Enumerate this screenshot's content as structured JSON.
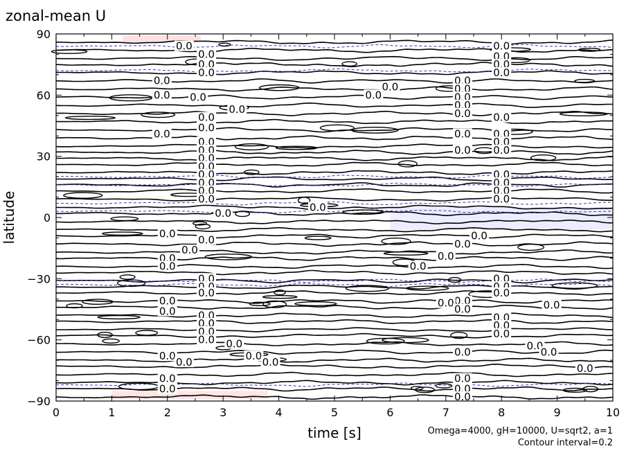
{
  "chart_data": {
    "type": "contour",
    "title": "zonal-mean U",
    "xlabel": "time [s]",
    "ylabel": "latitude",
    "xlim": [
      0,
      10
    ],
    "ylim": [
      -90,
      90
    ],
    "x_ticks": [
      0,
      1,
      2,
      3,
      4,
      5,
      6,
      7,
      8,
      9,
      10
    ],
    "y_ticks": [
      90,
      60,
      30,
      0,
      -30,
      -60,
      -90
    ],
    "grid": false,
    "legend": "none",
    "annotations": [
      "Omega=4000, gH=10000, U=sqrt2, a=1",
      "Contour interval=0.2"
    ],
    "contour_interval": 0.2,
    "contour_label_text": "0.0",
    "colors": {
      "contour": "#000000",
      "negative_contour": "#3333cc",
      "positive_shade": "#ffcccc",
      "negative_shade": "#ccccff"
    },
    "contour_latitudes": [
      86,
      82,
      78,
      75,
      71,
      67,
      63,
      59,
      55,
      51,
      47,
      43,
      39,
      35,
      32,
      29,
      26,
      22,
      19,
      16,
      13,
      9,
      5,
      2,
      -2,
      -6,
      -9,
      -13,
      -17,
      -20,
      -24,
      -27,
      -31,
      -34,
      -37,
      -41,
      -44,
      -48,
      -51,
      -55,
      -58,
      -62,
      -66,
      -70,
      -73,
      -77,
      -81,
      -84,
      -88
    ],
    "negative_contour_latitudes": [
      84,
      72,
      20,
      16,
      7,
      3,
      -31,
      -33,
      -82
    ],
    "labels": [
      {
        "x": 2.3,
        "y": 84
      },
      {
        "x": 2.7,
        "y": 80
      },
      {
        "x": 2.7,
        "y": 75
      },
      {
        "x": 2.7,
        "y": 71
      },
      {
        "x": 1.9,
        "y": 67
      },
      {
        "x": 1.9,
        "y": 60
      },
      {
        "x": 2.55,
        "y": 59
      },
      {
        "x": 3.25,
        "y": 53
      },
      {
        "x": 2.7,
        "y": 49
      },
      {
        "x": 2.7,
        "y": 44
      },
      {
        "x": 1.9,
        "y": 41
      },
      {
        "x": 2.7,
        "y": 37
      },
      {
        "x": 2.7,
        "y": 33
      },
      {
        "x": 2.7,
        "y": 29
      },
      {
        "x": 2.7,
        "y": 25
      },
      {
        "x": 2.7,
        "y": 21
      },
      {
        "x": 2.7,
        "y": 17
      },
      {
        "x": 2.7,
        "y": 13
      },
      {
        "x": 2.7,
        "y": 9
      },
      {
        "x": 3.0,
        "y": 2
      },
      {
        "x": 4.7,
        "y": 5
      },
      {
        "x": 6.0,
        "y": 64
      },
      {
        "x": 5.7,
        "y": 60
      },
      {
        "x": 7.3,
        "y": 67
      },
      {
        "x": 7.3,
        "y": 63
      },
      {
        "x": 7.3,
        "y": 59
      },
      {
        "x": 7.3,
        "y": 55
      },
      {
        "x": 7.3,
        "y": 51
      },
      {
        "x": 7.3,
        "y": 41
      },
      {
        "x": 7.3,
        "y": 33
      },
      {
        "x": 8.0,
        "y": 84
      },
      {
        "x": 8.0,
        "y": 79
      },
      {
        "x": 8.0,
        "y": 75
      },
      {
        "x": 8.0,
        "y": 71
      },
      {
        "x": 8.0,
        "y": 49
      },
      {
        "x": 8.0,
        "y": 41
      },
      {
        "x": 8.0,
        "y": 37
      },
      {
        "x": 8.0,
        "y": 33
      },
      {
        "x": 8.0,
        "y": 21
      },
      {
        "x": 8.0,
        "y": 17
      },
      {
        "x": 8.0,
        "y": 13
      },
      {
        "x": 8.0,
        "y": 9
      },
      {
        "x": 2.0,
        "y": -8
      },
      {
        "x": 2.4,
        "y": -16
      },
      {
        "x": 2.7,
        "y": -11
      },
      {
        "x": 2.0,
        "y": -20
      },
      {
        "x": 2.0,
        "y": -24
      },
      {
        "x": 2.7,
        "y": -30
      },
      {
        "x": 2.7,
        "y": -34
      },
      {
        "x": 2.7,
        "y": -37
      },
      {
        "x": 2.0,
        "y": -41
      },
      {
        "x": 2.0,
        "y": -46
      },
      {
        "x": 2.7,
        "y": -48
      },
      {
        "x": 2.7,
        "y": -52
      },
      {
        "x": 2.7,
        "y": -56
      },
      {
        "x": 2.7,
        "y": -60
      },
      {
        "x": 3.2,
        "y": -62
      },
      {
        "x": 2.0,
        "y": -68
      },
      {
        "x": 2.3,
        "y": -71
      },
      {
        "x": 3.55,
        "y": -68
      },
      {
        "x": 3.85,
        "y": -71
      },
      {
        "x": 2.0,
        "y": -79
      },
      {
        "x": 2.0,
        "y": -84
      },
      {
        "x": 7.6,
        "y": -9
      },
      {
        "x": 7.3,
        "y": -13
      },
      {
        "x": 7.0,
        "y": -19
      },
      {
        "x": 6.5,
        "y": -24
      },
      {
        "x": 7.3,
        "y": -41
      },
      {
        "x": 7.0,
        "y": -42
      },
      {
        "x": 7.3,
        "y": -45
      },
      {
        "x": 7.3,
        "y": -66
      },
      {
        "x": 7.3,
        "y": -79
      },
      {
        "x": 7.3,
        "y": -84
      },
      {
        "x": 7.3,
        "y": -88
      },
      {
        "x": 8.0,
        "y": -30
      },
      {
        "x": 8.0,
        "y": -34
      },
      {
        "x": 8.0,
        "y": -37
      },
      {
        "x": 8.0,
        "y": -49
      },
      {
        "x": 8.0,
        "y": -53
      },
      {
        "x": 8.0,
        "y": -57
      },
      {
        "x": 8.6,
        "y": -63
      },
      {
        "x": 8.85,
        "y": -66
      },
      {
        "x": 8.9,
        "y": -43
      },
      {
        "x": 9.5,
        "y": -74
      }
    ]
  }
}
